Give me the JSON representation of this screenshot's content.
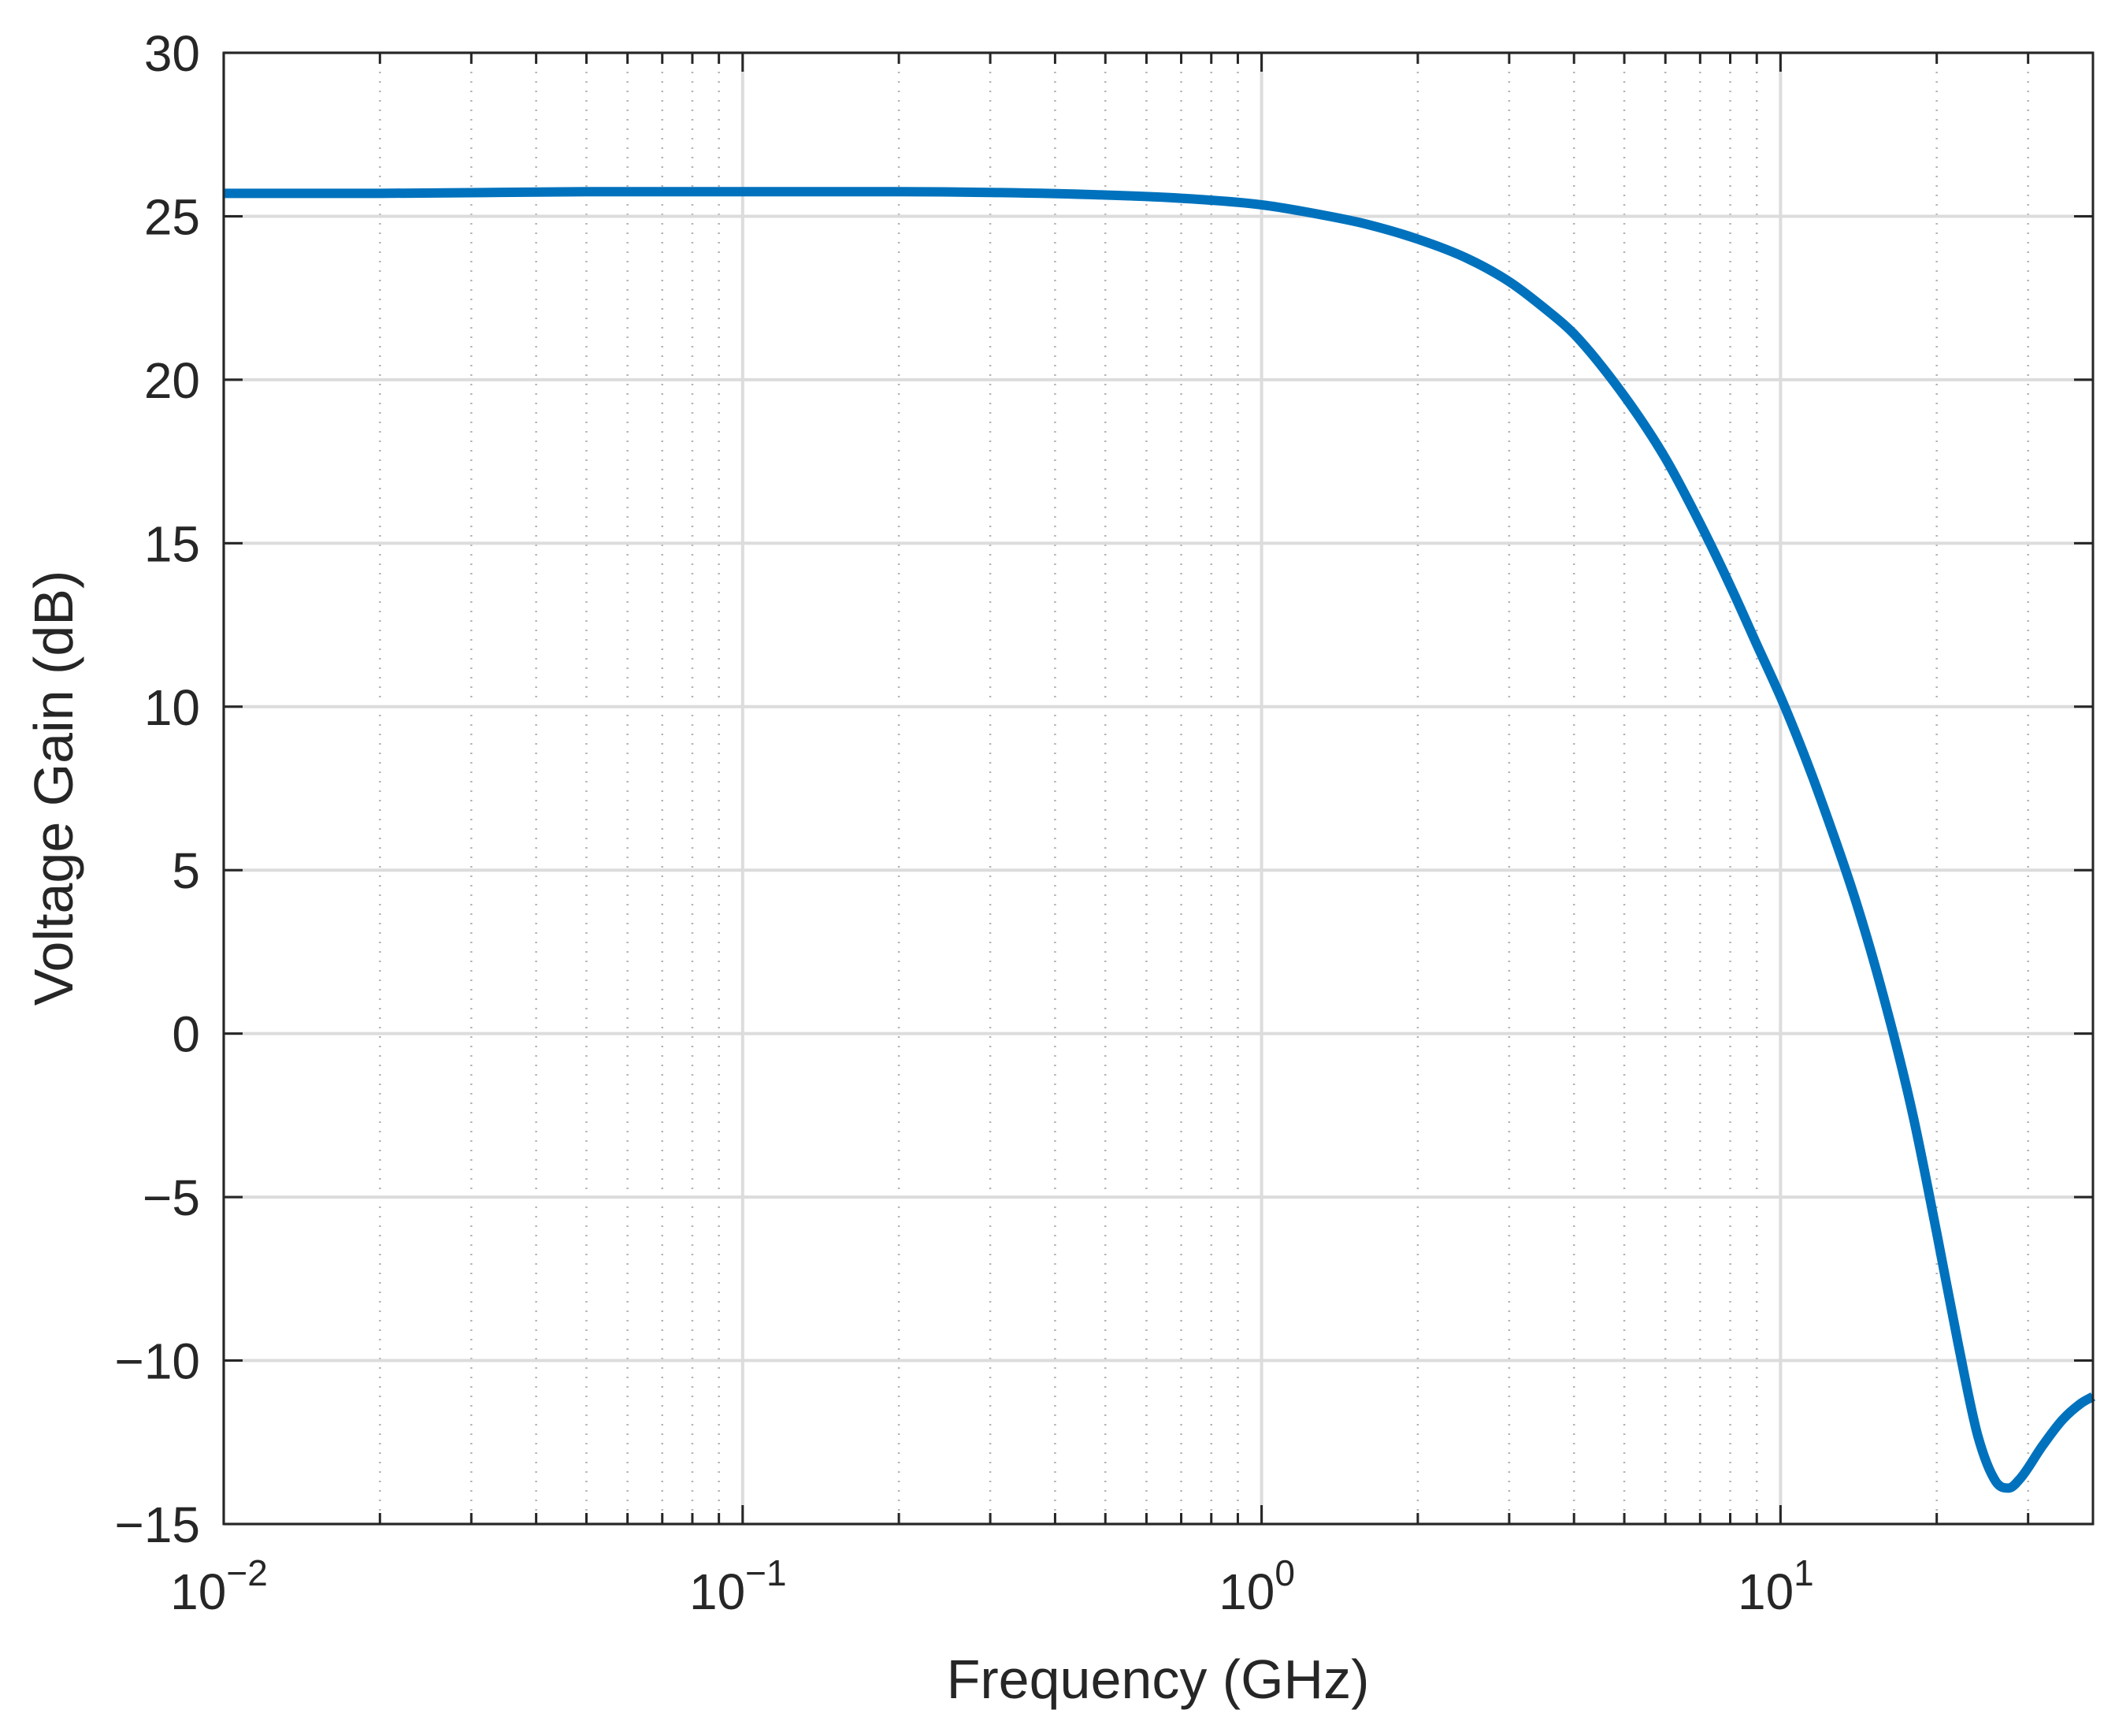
{
  "chart_data": {
    "type": "line",
    "title": "",
    "xlabel": "Frequency (GHz)",
    "ylabel": "Voltage Gain (dB)",
    "xscale": "log",
    "xlim": [
      0.01,
      40
    ],
    "ylim": [
      -15,
      30
    ],
    "grid": true,
    "x_ticks": [
      {
        "value": 0.01,
        "base": "10",
        "exp": "−2"
      },
      {
        "value": 0.1,
        "base": "10",
        "exp": "−1"
      },
      {
        "value": 1,
        "base": "10",
        "exp": "0"
      },
      {
        "value": 10,
        "base": "10",
        "exp": "1"
      }
    ],
    "y_ticks": [
      {
        "value": 30,
        "label": "30"
      },
      {
        "value": 25,
        "label": "25"
      },
      {
        "value": 20,
        "label": "20"
      },
      {
        "value": 15,
        "label": "15"
      },
      {
        "value": 10,
        "label": "10"
      },
      {
        "value": 5,
        "label": "5"
      },
      {
        "value": 0,
        "label": "0"
      },
      {
        "value": -5,
        "label": "−5"
      },
      {
        "value": -10,
        "label": "−10"
      },
      {
        "value": -15,
        "label": "−15"
      }
    ],
    "series": [
      {
        "name": "Voltage Gain",
        "color": "#0072BD",
        "x": [
          0.01,
          0.02,
          0.05,
          0.1,
          0.2,
          0.3,
          0.5,
          0.7,
          1.0,
          1.3,
          1.6,
          2.0,
          2.5,
          3.0,
          3.5,
          4.0,
          5.0,
          6.0,
          7.0,
          8.0,
          9.0,
          10.0,
          11.0,
          12.0,
          14.0,
          16.0,
          18.0,
          20.0,
          22.0,
          24.0,
          26.0,
          27.5,
          29.0,
          32.0,
          35.0,
          38.0,
          40.0
        ],
        "y": [
          25.7,
          25.7,
          25.75,
          25.75,
          25.75,
          25.73,
          25.65,
          25.55,
          25.35,
          25.05,
          24.75,
          24.3,
          23.7,
          23.0,
          22.2,
          21.4,
          19.5,
          17.6,
          15.6,
          13.7,
          11.9,
          10.3,
          8.7,
          7.1,
          4.0,
          0.8,
          -2.5,
          -6.1,
          -9.5,
          -12.3,
          -13.7,
          -13.9,
          -13.6,
          -12.6,
          -11.8,
          -11.3,
          -11.1
        ]
      }
    ]
  }
}
